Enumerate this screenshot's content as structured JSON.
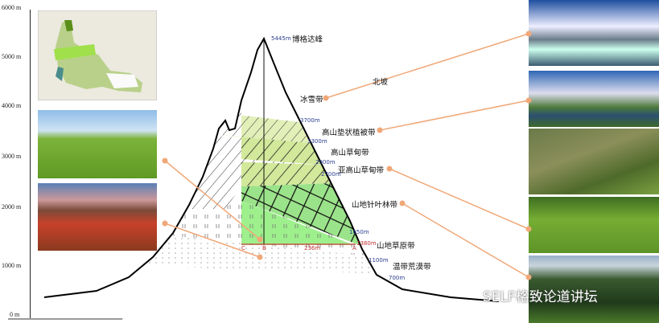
{
  "axis": {
    "ticks": [
      "6000 m",
      "5000 m",
      "4000 m",
      "3000 m",
      "2000 m",
      "1000 m",
      "0 m"
    ]
  },
  "peak": {
    "altitude": "5445m",
    "name": "博格达峰"
  },
  "slope_label": "北坡",
  "zones": [
    {
      "name": "冰雪带"
    },
    {
      "name": "高山垫状植被带",
      "altitude": "3700m"
    },
    {
      "name": "高山草甸带",
      "altitude": "3300m"
    },
    {
      "name": "亚高山草甸带",
      "altitude": "2900m"
    },
    {
      "name": "",
      "altitude": "2700m"
    },
    {
      "name": "山地针叶林带",
      "altitude": "1650m"
    },
    {
      "name": "山地草原带",
      "altitude": "1380m"
    },
    {
      "name": "温带荒漠带",
      "altitude": "1100m"
    },
    {
      "name": "",
      "altitude": "700m"
    }
  ],
  "points": {
    "a": "A",
    "b": "B",
    "c": "C",
    "distance": "236m"
  },
  "watermark": "SELF格致论道讲坛",
  "colors": {
    "leader": "#f0a878",
    "alt_text": "#2a3d8f",
    "light_green": "#dcebb0",
    "green": "#8fe07a"
  }
}
